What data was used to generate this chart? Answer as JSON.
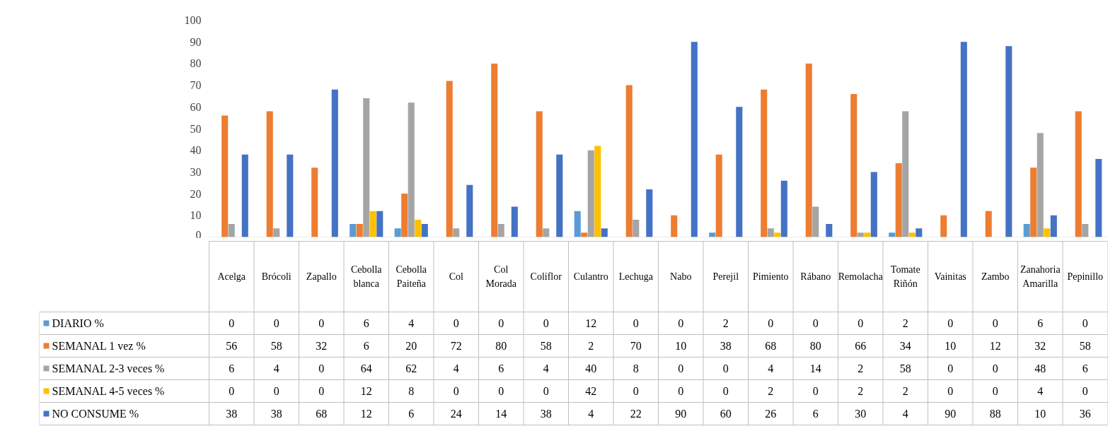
{
  "chart_data": {
    "type": "bar",
    "categories": [
      "Acelga",
      "Brócoli",
      "Zapallo",
      "Cebolla blanca",
      "Cebolla Paiteña",
      "Col",
      "Col Morada",
      "Coliflor",
      "Culantro",
      "Lechuga",
      "Nabo",
      "Perejil",
      "Pimiento",
      "Rábano",
      "Remolacha",
      "Tomate Riñón",
      "Vainitas",
      "Zambo",
      "Zanahoria Amarilla",
      "Pepinillo"
    ],
    "series": [
      {
        "name": "DIARIO %",
        "color": "#5b9bd5",
        "values": [
          0,
          0,
          0,
          6,
          4,
          0,
          0,
          0,
          12,
          0,
          0,
          2,
          0,
          0,
          0,
          2,
          0,
          0,
          6,
          0
        ]
      },
      {
        "name": "SEMANAL 1 vez %",
        "color": "#ed7d31",
        "values": [
          56,
          58,
          32,
          6,
          20,
          72,
          80,
          58,
          2,
          70,
          10,
          38,
          68,
          80,
          66,
          34,
          10,
          12,
          32,
          58
        ]
      },
      {
        "name": "SEMANAL 2-3 veces %",
        "color": "#a5a5a5",
        "values": [
          6,
          4,
          0,
          64,
          62,
          4,
          6,
          4,
          40,
          8,
          0,
          0,
          4,
          14,
          2,
          58,
          0,
          0,
          48,
          6
        ]
      },
      {
        "name": "SEMANAL 4-5 veces %",
        "color": "#ffc000",
        "values": [
          0,
          0,
          0,
          12,
          8,
          0,
          0,
          0,
          42,
          0,
          0,
          0,
          2,
          0,
          2,
          2,
          0,
          0,
          4,
          0
        ]
      },
      {
        "name": "NO CONSUME %",
        "color": "#4472c4",
        "values": [
          38,
          38,
          68,
          12,
          6,
          24,
          14,
          38,
          4,
          22,
          90,
          60,
          26,
          6,
          30,
          4,
          90,
          88,
          10,
          36
        ]
      }
    ],
    "ylim": [
      0,
      100
    ],
    "yticks": [
      0,
      10,
      20,
      30,
      40,
      50,
      60,
      70,
      80,
      90,
      100
    ],
    "grid": false,
    "legend": "bottom",
    "data_labels": true
  }
}
